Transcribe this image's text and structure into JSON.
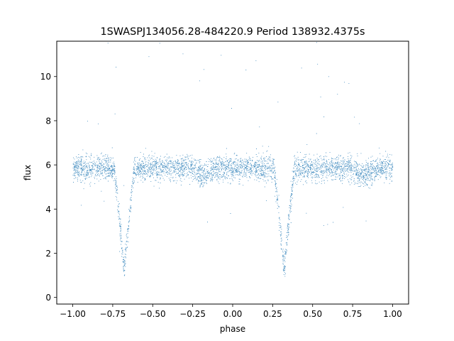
{
  "chart_data": {
    "type": "scatter",
    "title": "1SWASPJ134056.28-484220.9 Period 138932.4375s",
    "xlabel": "phase",
    "ylabel": "flux",
    "xlim": [
      -1.1,
      1.1
    ],
    "ylim": [
      -0.3,
      11.6
    ],
    "x_ticks": [
      "−1.00",
      "−0.75",
      "−0.50",
      "−0.25",
      "0.00",
      "0.25",
      "0.50",
      "0.75",
      "1.00"
    ],
    "x_tick_values": [
      -1.0,
      -0.75,
      -0.5,
      -0.25,
      0.0,
      0.25,
      0.5,
      0.75,
      1.0
    ],
    "y_ticks": [
      "0",
      "2",
      "4",
      "6",
      "8",
      "10"
    ],
    "y_tick_values": [
      0,
      2,
      4,
      6,
      8,
      10
    ],
    "grid": false,
    "point_color": "#1f77b4",
    "series": [
      {
        "phase_range": [
          -1.0,
          1.0
        ],
        "baseline_flux": 5.85,
        "scatter_sd": 0.28,
        "primary_eclipse": {
          "phase": 0.32,
          "depth_flux": 1.2,
          "half_width": 0.065
        },
        "secondary_eclipse": {
          "phase": -0.68,
          "depth_flux": 1.2,
          "half_width": 0.065
        },
        "secondary_dips": [
          {
            "phase": -0.18,
            "flux": 5.5
          },
          {
            "phase": 0.82,
            "flux": 5.5
          }
        ],
        "point_count": 14000
      }
    ]
  }
}
